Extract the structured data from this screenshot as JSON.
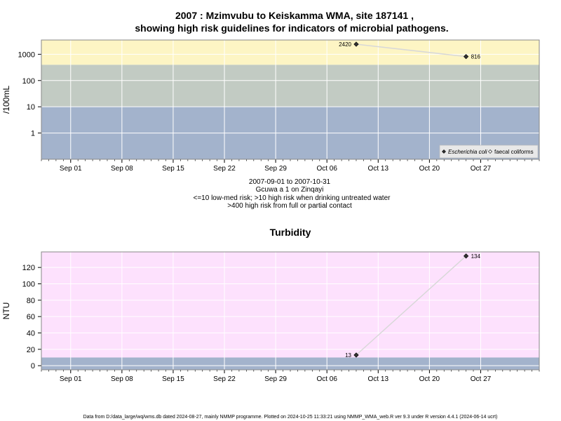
{
  "header": {
    "title_line1": "2007 : Mzimvubu to Keiskamma WMA, site 187141 ,",
    "title_line2": "showing high risk guidelines for indicators of microbial pathogens."
  },
  "caption": {
    "line1": "2007-09-01 to 2007-10-31",
    "line2": "Gcuwa a 1 on Zinqayi",
    "line3": "<=10 low-med risk; >10 high risk when drinking untreated water",
    "line4": ">400 high risk from full or partial contact"
  },
  "footer": {
    "text": "Data from D:/data_large/wq/wms.db dated 2024-08-27, mainly NMMP programme. Plotted on 2024-10-25 11:33:21 using NMMP_WMA_web.R ver 9.3 under R version 4.4.1 (2024-06-14 ucrt)"
  },
  "colors": {
    "risk_low": "#a3b3cc",
    "risk_med": "#c2cbc3",
    "risk_high": "#fdf5c4",
    "turbidity_bg": "#fde1fd",
    "turbidity_band": "#a3b3cc",
    "grid": "#ffffff",
    "line": "#d8d8d8",
    "point": "#333333"
  },
  "chart_data": [
    {
      "type": "line",
      "title": "",
      "ylabel": "/100mL",
      "y_scale": "log",
      "ylim": [
        0.1,
        3500
      ],
      "xlim": [
        "2007-08-28",
        "2007-11-04"
      ],
      "x_ticks": [
        "2007-09-01",
        "2007-09-08",
        "2007-09-15",
        "2007-09-22",
        "2007-09-29",
        "2007-10-06",
        "2007-10-13",
        "2007-10-20",
        "2007-10-27"
      ],
      "x_tick_labels": [
        "Sep 01",
        "Sep 08",
        "Sep 15",
        "Sep 22",
        "Sep 29",
        "Oct 06",
        "Oct 13",
        "Oct 20",
        "Oct 27"
      ],
      "y_ticks": [
        1,
        10,
        100,
        1000
      ],
      "y_tick_labels": [
        "1",
        "10",
        "100",
        "1000"
      ],
      "bands": [
        {
          "from": 0.1,
          "to": 10,
          "color": "#a3b3cc"
        },
        {
          "from": 10,
          "to": 400,
          "color": "#c2cbc3"
        },
        {
          "from": 400,
          "to": 3500,
          "color": "#fdf5c4"
        }
      ],
      "series": [
        {
          "name": "Escherichia coli",
          "marker": "filled-diamond",
          "x": [
            "2007-10-10",
            "2007-10-25"
          ],
          "values": [
            2420,
            816
          ],
          "labels": [
            "2420",
            "816"
          ]
        }
      ],
      "legend": {
        "placement": "bottom-right",
        "entries": [
          {
            "label": "Escherichia coli",
            "marker": "filled-diamond",
            "italic": true
          },
          {
            "label": "faecal coliforms",
            "marker": "open-diamond",
            "italic": false
          }
        ]
      },
      "grid": true
    },
    {
      "type": "line",
      "title": "Turbidity",
      "ylabel": "NTU",
      "ylim": [
        -5,
        139
      ],
      "xlim": [
        "2007-08-28",
        "2007-11-04"
      ],
      "x_ticks": [
        "2007-09-01",
        "2007-09-08",
        "2007-09-15",
        "2007-09-22",
        "2007-09-29",
        "2007-10-06",
        "2007-10-13",
        "2007-10-20",
        "2007-10-27"
      ],
      "x_tick_labels": [
        "Sep 01",
        "Sep 08",
        "Sep 15",
        "Sep 22",
        "Sep 29",
        "Oct 06",
        "Oct 13",
        "Oct 20",
        "Oct 27"
      ],
      "y_ticks": [
        0,
        20,
        40,
        60,
        80,
        100,
        120
      ],
      "y_tick_labels": [
        "0",
        "20",
        "40",
        "60",
        "80",
        "100",
        "120"
      ],
      "bands": [
        {
          "from": -5,
          "to": 10,
          "color": "#a3b3cc"
        },
        {
          "from": 10,
          "to": 139,
          "color": "#fde1fd"
        }
      ],
      "series": [
        {
          "name": "",
          "marker": "filled-diamond",
          "x": [
            "2007-10-10",
            "2007-10-25"
          ],
          "values": [
            13,
            134
          ],
          "labels": [
            "13",
            "134"
          ]
        }
      ],
      "grid": true
    }
  ]
}
